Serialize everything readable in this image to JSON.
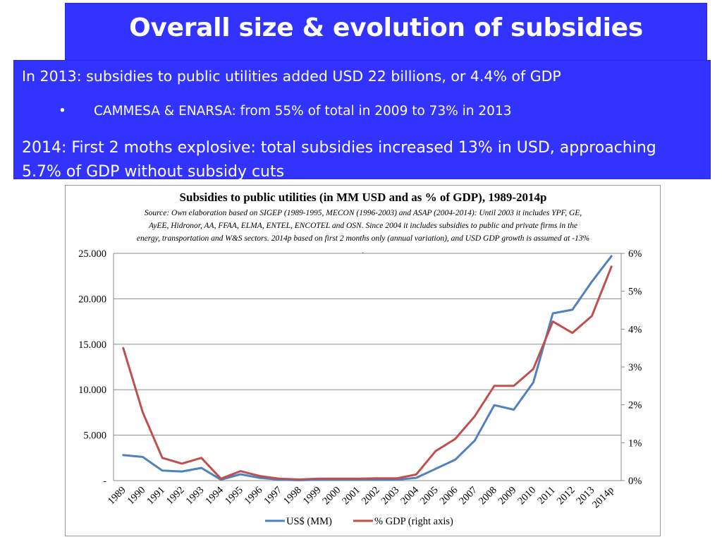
{
  "slide": {
    "title": "Overall size & evolution of subsidies",
    "bullets": [
      "In 2013: subsidies to public utilities added USD 22 billions, or 4.4% of GDP",
      "CAMMESA & ENARSA: from 55% of total in 2009 to 73% in 2013",
      "2014: First 2 moths explosive: total subsidies increased 13% in USD, approaching 5.7% of GDP without subsidy cuts"
    ],
    "sub_bullet_marker": "•"
  },
  "chart_data": {
    "type": "line",
    "title": "Subsidies to public utilities (in MM USD and as % of GDP), 1989-2014p",
    "source_lines": [
      "Source: Own elaboration based on SIGEP (1989-1995, MECON (1996-2003) and ASAP (2004-2014): Until 2003 it includes YPF, GE,",
      "AyEE, Hidronor, AA, FFAA, ELMA, ENTEL, ENCOTEL and OSN. Since 2004 it includes subsidies to public and private firms in the",
      "energy, transportation and W&S sectors. 2014p based on first 2 months only (annual variation), and USD GDP growth is assumed at -13%",
      "."
    ],
    "categories": [
      "1989",
      "1990",
      "1991",
      "1992",
      "1993",
      "1994",
      "1995",
      "1996",
      "1997",
      "1998",
      "1999",
      "2000",
      "2001",
      "2002",
      "2003",
      "2004",
      "2005",
      "2006",
      "2007",
      "2008",
      "2009",
      "2010",
      "2011",
      "2012",
      "2013",
      "2014p"
    ],
    "left_axis": {
      "min": 0,
      "max": 25000,
      "ticks": [
        "-",
        "5.000",
        "10.000",
        "15.000",
        "20.000",
        "25.000"
      ]
    },
    "right_axis": {
      "min": 0,
      "max": 6,
      "ticks": [
        "0%",
        "1%",
        "2%",
        "3%",
        "4%",
        "5%",
        "6%"
      ]
    },
    "series": [
      {
        "name": "US$ (MM)",
        "axis": "left",
        "color": "#4f81bd",
        "values": [
          2800,
          2600,
          1100,
          1000,
          1400,
          100,
          700,
          300,
          100,
          50,
          100,
          100,
          100,
          100,
          100,
          300,
          1300,
          2300,
          4400,
          8300,
          7800,
          10800,
          18400,
          18800,
          21900,
          24700
        ]
      },
      {
        "name": "% GDP (right axis)",
        "axis": "right",
        "color": "#c0504d",
        "values": [
          3.5,
          1.8,
          0.6,
          0.45,
          0.6,
          0.05,
          0.25,
          0.12,
          0.05,
          0.03,
          0.05,
          0.05,
          0.05,
          0.06,
          0.06,
          0.16,
          0.78,
          1.1,
          1.7,
          2.5,
          2.5,
          2.95,
          4.2,
          3.9,
          4.35,
          5.65
        ]
      }
    ],
    "legend": {
      "position": "bottom",
      "entries": [
        "US$ (MM)",
        "% GDP (right axis)"
      ]
    },
    "grid": true
  }
}
